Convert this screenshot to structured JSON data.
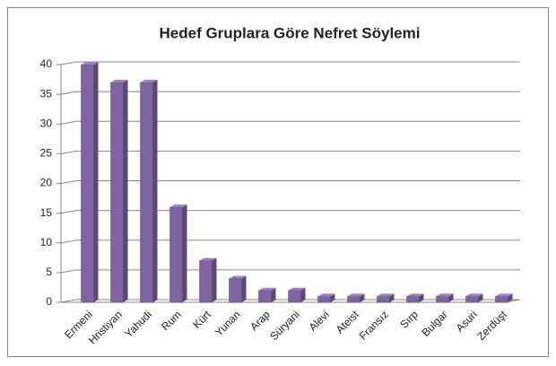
{
  "chart_data": {
    "type": "bar",
    "title": "Hedef Gruplara Göre Nefret Söylemi",
    "categories": [
      "Ermeni",
      "Hristiyan",
      "Yahudi",
      "Rum",
      "Kürt",
      "Yunan",
      "Arap",
      "Süryani",
      "Alevi",
      "Ateist",
      "Fransız",
      "Sırp",
      "Bulgar",
      "Asuri",
      "Zerdüşt"
    ],
    "values": [
      40,
      37,
      37,
      16,
      7,
      4,
      2,
      2,
      1,
      1,
      1,
      1,
      1,
      1,
      1
    ],
    "color": "#8064a2",
    "ylim": [
      0,
      40
    ],
    "yticks": [
      0,
      5,
      10,
      15,
      20,
      25,
      30,
      35,
      40
    ],
    "grid": true
  }
}
